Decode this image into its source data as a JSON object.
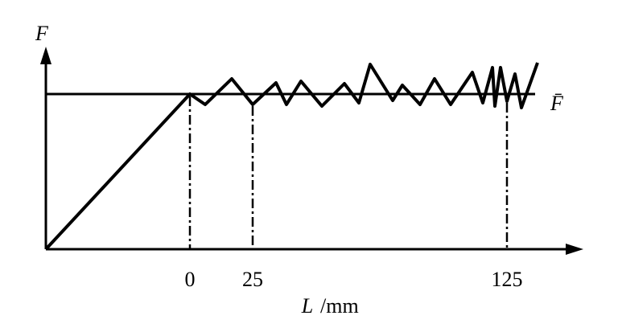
{
  "axis_labels": {
    "y": "F",
    "x_var": "L",
    "x_unit": "/mm"
  },
  "reference_label": "F̄",
  "x_tick_labels": [
    "0",
    "25",
    "125"
  ]
}
